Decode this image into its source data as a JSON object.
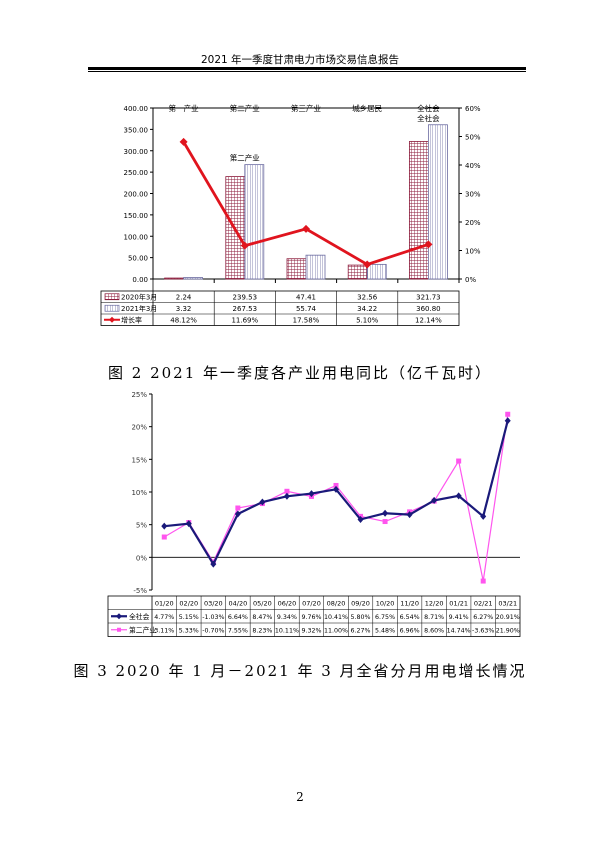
{
  "header": {
    "title": "2021 年一季度甘肃电力市场交易信息报告"
  },
  "captions": {
    "fig2": "图 2   2021 年一季度各产业用电同比（亿千瓦时）",
    "fig3": "图 3   2020 年 1 月－2021 年 3 月全省分月用电增长情况"
  },
  "page_number": "2",
  "chart_data": [
    {
      "type": "bar",
      "categories": [
        "第一产业",
        "第二产业",
        "第三产业",
        "城乡居民",
        "全社会"
      ],
      "series": [
        {
          "name": "2020年3月",
          "type": "bar",
          "values": [
            2.24,
            239.53,
            47.41,
            32.56,
            321.73
          ],
          "labels": [
            "2.24",
            "239.53",
            "47.41",
            "32.56",
            "321.73"
          ]
        },
        {
          "name": "2021年3月",
          "type": "bar",
          "values": [
            3.32,
            267.53,
            55.74,
            34.22,
            360.8
          ],
          "labels": [
            "3.32",
            "267.53",
            "55.74",
            "34.22",
            "360.80"
          ]
        },
        {
          "name": "增长率",
          "type": "line",
          "axis": "right",
          "values": [
            48.12,
            11.69,
            17.58,
            5.1,
            12.14
          ],
          "labels": [
            "48.12%",
            "11.69%",
            "17.58%",
            "5.10%",
            "12.14%"
          ]
        }
      ],
      "ylim": [
        0,
        400
      ],
      "yticks": [
        "0.00",
        "50.00",
        "100.00",
        "150.00",
        "200.00",
        "250.00",
        "300.00",
        "350.00",
        "400.00"
      ],
      "y2lim": [
        0,
        60
      ],
      "y2ticks": [
        "0%",
        "10%",
        "20%",
        "30%",
        "40%",
        "50%",
        "60%"
      ],
      "colors": {
        "bar2020": "#8b1a3a",
        "bar2021": "#6a6aa0",
        "line": "#e0141e"
      },
      "legend": "data-table"
    },
    {
      "type": "line",
      "categories": [
        "01/20",
        "02/20",
        "03/20",
        "04/20",
        "05/20",
        "06/20",
        "07/20",
        "08/20",
        "09/20",
        "10/20",
        "11/20",
        "12/20",
        "01/21",
        "02/21",
        "03/21"
      ],
      "series": [
        {
          "name": "全社会",
          "values": [
            4.77,
            5.15,
            -1.03,
            6.64,
            8.47,
            9.34,
            9.76,
            10.41,
            5.8,
            6.75,
            6.54,
            8.71,
            9.41,
            6.27,
            20.91
          ],
          "labels": [
            "4.77%",
            "5.15%",
            "-1.03%",
            "6.64%",
            "8.47%",
            "9.34%",
            "9.76%",
            "10.41%",
            "5.80%",
            "6.75%",
            "6.54%",
            "8.71%",
            "9.41%",
            "6.27%",
            "20.91%"
          ]
        },
        {
          "name": "第二产业",
          "values": [
            3.11,
            5.33,
            -0.7,
            7.55,
            8.23,
            10.11,
            9.32,
            11.0,
            6.27,
            5.48,
            6.96,
            8.6,
            14.74,
            -3.63,
            21.9
          ],
          "labels": [
            "3.11%",
            "5.33%",
            "-0.70%",
            "7.55%",
            "8.23%",
            "10.11%",
            "9.32%",
            "11.00%",
            "6.27%",
            "5.48%",
            "6.96%",
            "8.60%",
            "14.74%",
            "-3.63%",
            "21.90%"
          ]
        }
      ],
      "ylim": [
        -5,
        25
      ],
      "yticks": [
        "-5%",
        "0%",
        "5%",
        "10%",
        "15%",
        "20%",
        "25%"
      ],
      "colors": {
        "全社会": "#1a1a7a",
        "第二产业": "#ff55ee"
      },
      "legend": "data-table"
    }
  ]
}
